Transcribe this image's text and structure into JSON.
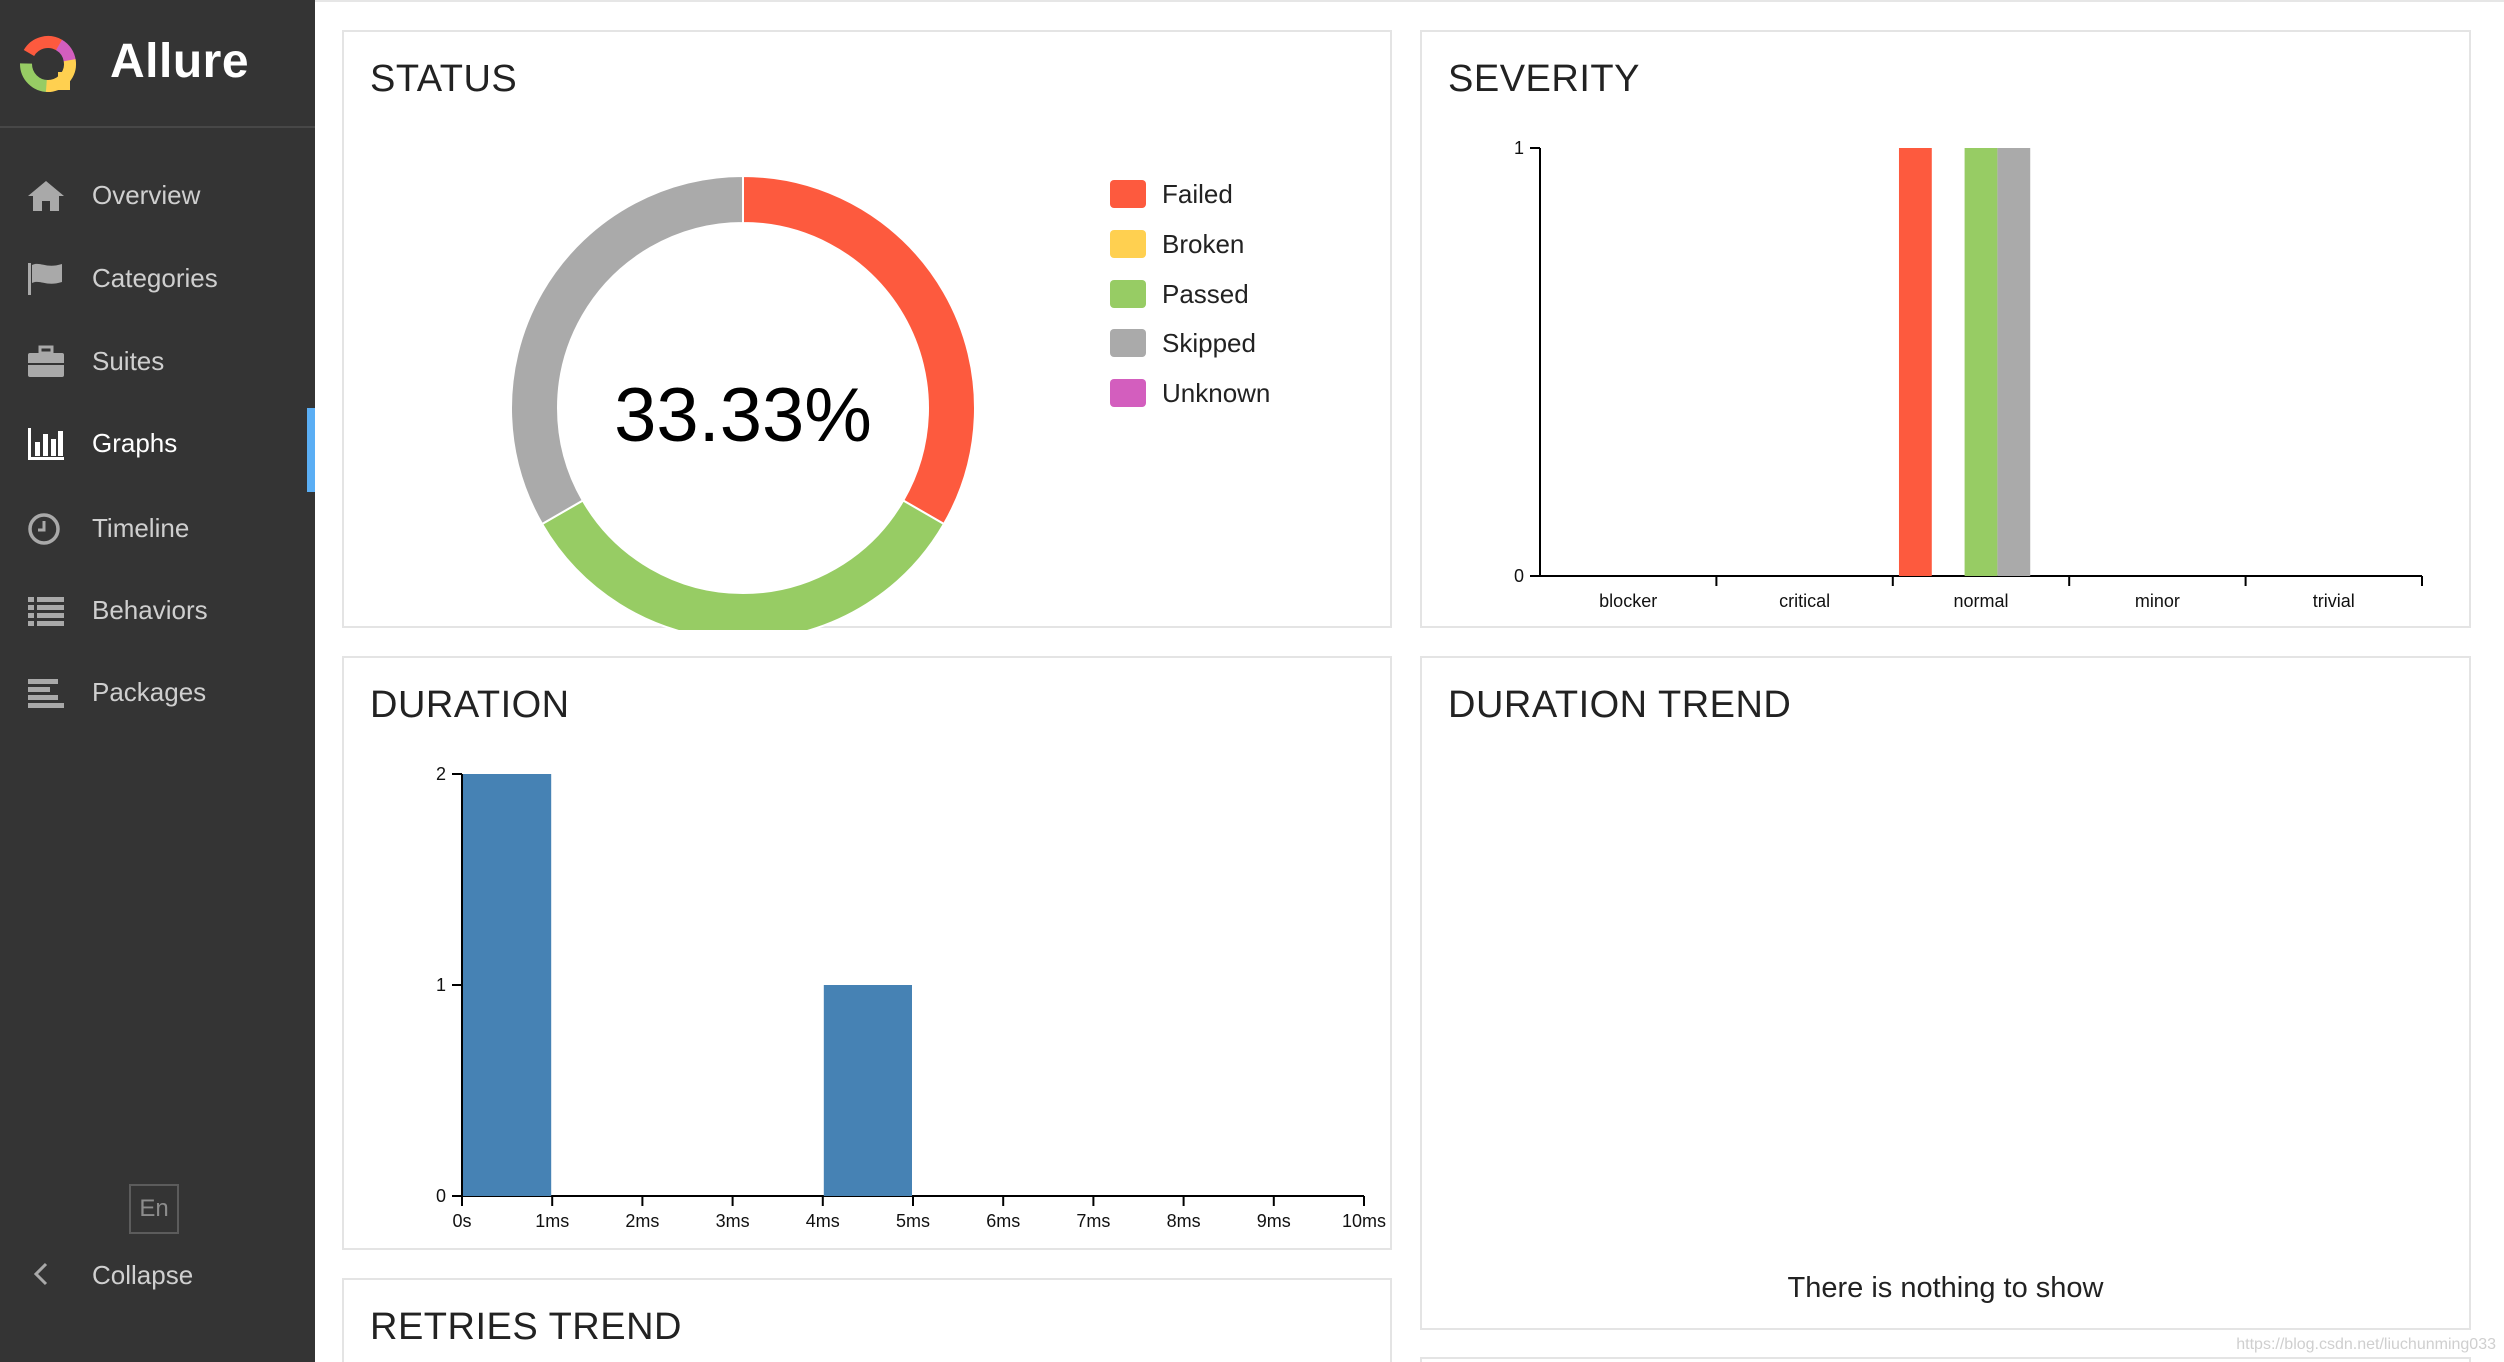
{
  "app": {
    "name": "Allure"
  },
  "sidebar": {
    "items": [
      {
        "label": "Overview",
        "icon": "home-icon"
      },
      {
        "label": "Categories",
        "icon": "flag-icon"
      },
      {
        "label": "Suites",
        "icon": "briefcase-icon"
      },
      {
        "label": "Graphs",
        "icon": "bar-chart-icon",
        "active": true
      },
      {
        "label": "Timeline",
        "icon": "clock-icon"
      },
      {
        "label": "Behaviors",
        "icon": "list-icon"
      },
      {
        "label": "Packages",
        "icon": "align-left-icon"
      }
    ],
    "language": "En",
    "collapse_label": "Collapse"
  },
  "widgets": {
    "status": {
      "title": "STATUS",
      "percent_label": "33.33%"
    },
    "severity": {
      "title": "SEVERITY"
    },
    "duration": {
      "title": "DURATION"
    },
    "duration_trend": {
      "title": "DURATION TREND",
      "empty_text": "There is nothing to show"
    },
    "retries_trend": {
      "title": "RETRIES TREND"
    }
  },
  "colors": {
    "failed": "#fd5a3e",
    "broken": "#ffd050",
    "passed": "#97cc64",
    "skipped": "#aaaaaa",
    "unknown": "#d35ebe",
    "duration_bar": "#4682b4",
    "sidebar_bg": "#343434",
    "active_marker": "#5aaef4"
  },
  "watermark": "https://blog.csdn.net/liuchunming033",
  "chart_data": [
    {
      "type": "pie",
      "name": "status",
      "categories": [
        "Failed",
        "Broken",
        "Passed",
        "Skipped",
        "Unknown"
      ],
      "values": [
        1,
        0,
        1,
        1,
        0
      ],
      "center_label": "33.33%"
    },
    {
      "type": "bar",
      "name": "severity",
      "categories": [
        "blocker",
        "critical",
        "normal",
        "minor",
        "trivial"
      ],
      "series": [
        {
          "name": "Failed",
          "values": [
            0,
            0,
            1,
            0,
            0
          ]
        },
        {
          "name": "Broken",
          "values": [
            0,
            0,
            0,
            0,
            0
          ]
        },
        {
          "name": "Passed",
          "values": [
            0,
            0,
            1,
            0,
            0
          ]
        },
        {
          "name": "Skipped",
          "values": [
            0,
            0,
            1,
            0,
            0
          ]
        },
        {
          "name": "Unknown",
          "values": [
            0,
            0,
            0,
            0,
            0
          ]
        }
      ],
      "ylim": [
        0,
        1
      ],
      "yticks": [
        "0",
        "1"
      ]
    },
    {
      "type": "bar",
      "name": "duration",
      "x_ticks": [
        "0s",
        "1ms",
        "2ms",
        "3ms",
        "4ms",
        "5ms",
        "6ms",
        "7ms",
        "8ms",
        "9ms",
        "10ms"
      ],
      "bins": [
        {
          "from": 0,
          "to": 1,
          "count": 2
        },
        {
          "from": 4,
          "to": 5,
          "count": 1
        }
      ],
      "ylim": [
        0,
        2
      ],
      "yticks": [
        "0",
        "1",
        "2"
      ]
    }
  ]
}
